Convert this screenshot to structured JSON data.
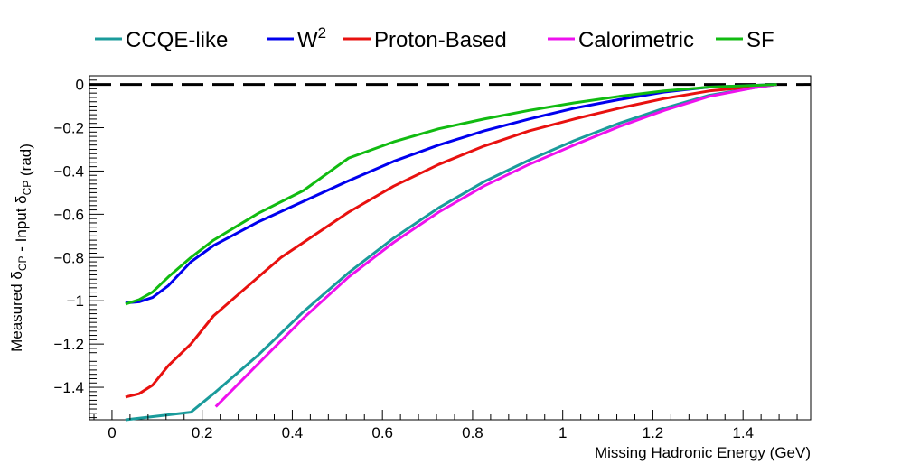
{
  "chart_data": {
    "type": "line",
    "title": "",
    "xlabel": "Missing Hadronic Energy (GeV)",
    "ylabel": {
      "parts": [
        {
          "text": "Measured δ",
          "sub": "CP"
        },
        {
          "text": " - Input δ",
          "sub": "CP"
        },
        {
          "text": " (rad)",
          "sub": ""
        }
      ]
    },
    "xlim": [
      -0.05,
      1.55
    ],
    "ylim": [
      -1.55,
      0.04
    ],
    "x_ticks": [
      {
        "value": 0,
        "label": "0"
      },
      {
        "value": 0.2,
        "label": "0.2"
      },
      {
        "value": 0.4,
        "label": "0.4"
      },
      {
        "value": 0.6,
        "label": "0.6"
      },
      {
        "value": 0.8,
        "label": "0.8"
      },
      {
        "value": 1.0,
        "label": "1"
      },
      {
        "value": 1.2,
        "label": "1.2"
      },
      {
        "value": 1.4,
        "label": "1.4"
      }
    ],
    "y_ticks": [
      {
        "value": 0,
        "label": "0"
      },
      {
        "value": -0.2,
        "label": "−0.2"
      },
      {
        "value": -0.4,
        "label": "−0.4"
      },
      {
        "value": -0.6,
        "label": "−0.6"
      },
      {
        "value": -0.8,
        "label": "−0.8"
      },
      {
        "value": -1.0,
        "label": "−1"
      },
      {
        "value": -1.2,
        "label": "−1.2"
      },
      {
        "value": -1.4,
        "label": "−1.4"
      }
    ],
    "reference_line": {
      "y": 0,
      "style": "dashed",
      "color": "#000000"
    },
    "legend_position": "top",
    "series": [
      {
        "name": "CCQE-like",
        "color": "#1a9b9b",
        "points": [
          [
            0.03,
            -1.55
          ],
          [
            0.175,
            -1.515
          ],
          [
            0.225,
            -1.43
          ],
          [
            0.325,
            -1.25
          ],
          [
            0.425,
            -1.05
          ],
          [
            0.525,
            -0.87
          ],
          [
            0.625,
            -0.71
          ],
          [
            0.725,
            -0.57
          ],
          [
            0.825,
            -0.45
          ],
          [
            0.925,
            -0.35
          ],
          [
            1.025,
            -0.26
          ],
          [
            1.125,
            -0.18
          ],
          [
            1.225,
            -0.11
          ],
          [
            1.325,
            -0.05
          ],
          [
            1.425,
            -0.015
          ],
          [
            1.475,
            0.0
          ]
        ]
      },
      {
        "name": "W²",
        "name_base": "W",
        "name_sup": "2",
        "color": "#0000ee",
        "points": [
          [
            0.03,
            -1.01
          ],
          [
            0.06,
            -1.005
          ],
          [
            0.09,
            -0.985
          ],
          [
            0.125,
            -0.93
          ],
          [
            0.175,
            -0.82
          ],
          [
            0.225,
            -0.745
          ],
          [
            0.325,
            -0.635
          ],
          [
            0.425,
            -0.54
          ],
          [
            0.525,
            -0.445
          ],
          [
            0.625,
            -0.355
          ],
          [
            0.725,
            -0.28
          ],
          [
            0.825,
            -0.215
          ],
          [
            0.925,
            -0.16
          ],
          [
            1.025,
            -0.11
          ],
          [
            1.125,
            -0.07
          ],
          [
            1.225,
            -0.035
          ],
          [
            1.325,
            -0.012
          ],
          [
            1.475,
            0.0
          ]
        ]
      },
      {
        "name": "Proton-Based",
        "color": "#e8110f",
        "points": [
          [
            0.03,
            -1.445
          ],
          [
            0.06,
            -1.43
          ],
          [
            0.09,
            -1.39
          ],
          [
            0.125,
            -1.3
          ],
          [
            0.175,
            -1.2
          ],
          [
            0.225,
            -1.07
          ],
          [
            0.325,
            -0.89
          ],
          [
            0.375,
            -0.8
          ],
          [
            0.425,
            -0.73
          ],
          [
            0.525,
            -0.59
          ],
          [
            0.625,
            -0.47
          ],
          [
            0.725,
            -0.37
          ],
          [
            0.825,
            -0.285
          ],
          [
            0.925,
            -0.215
          ],
          [
            1.025,
            -0.16
          ],
          [
            1.125,
            -0.11
          ],
          [
            1.225,
            -0.065
          ],
          [
            1.325,
            -0.03
          ],
          [
            1.475,
            0.0
          ]
        ]
      },
      {
        "name": "Calorimetric",
        "color": "#ee11ee",
        "points": [
          [
            0.23,
            -1.49
          ],
          [
            0.325,
            -1.29
          ],
          [
            0.425,
            -1.08
          ],
          [
            0.525,
            -0.89
          ],
          [
            0.625,
            -0.73
          ],
          [
            0.725,
            -0.59
          ],
          [
            0.825,
            -0.47
          ],
          [
            0.925,
            -0.37
          ],
          [
            1.025,
            -0.28
          ],
          [
            1.125,
            -0.195
          ],
          [
            1.225,
            -0.12
          ],
          [
            1.325,
            -0.055
          ],
          [
            1.425,
            -0.015
          ],
          [
            1.475,
            0.0
          ]
        ]
      },
      {
        "name": "SF",
        "color": "#11bb11",
        "points": [
          [
            0.03,
            -1.015
          ],
          [
            0.06,
            -0.995
          ],
          [
            0.09,
            -0.96
          ],
          [
            0.125,
            -0.89
          ],
          [
            0.175,
            -0.8
          ],
          [
            0.225,
            -0.72
          ],
          [
            0.325,
            -0.595
          ],
          [
            0.425,
            -0.49
          ],
          [
            0.525,
            -0.34
          ],
          [
            0.625,
            -0.265
          ],
          [
            0.725,
            -0.205
          ],
          [
            0.825,
            -0.16
          ],
          [
            0.925,
            -0.12
          ],
          [
            1.025,
            -0.085
          ],
          [
            1.125,
            -0.055
          ],
          [
            1.225,
            -0.03
          ],
          [
            1.325,
            -0.012
          ],
          [
            1.475,
            0.0
          ]
        ]
      }
    ]
  }
}
